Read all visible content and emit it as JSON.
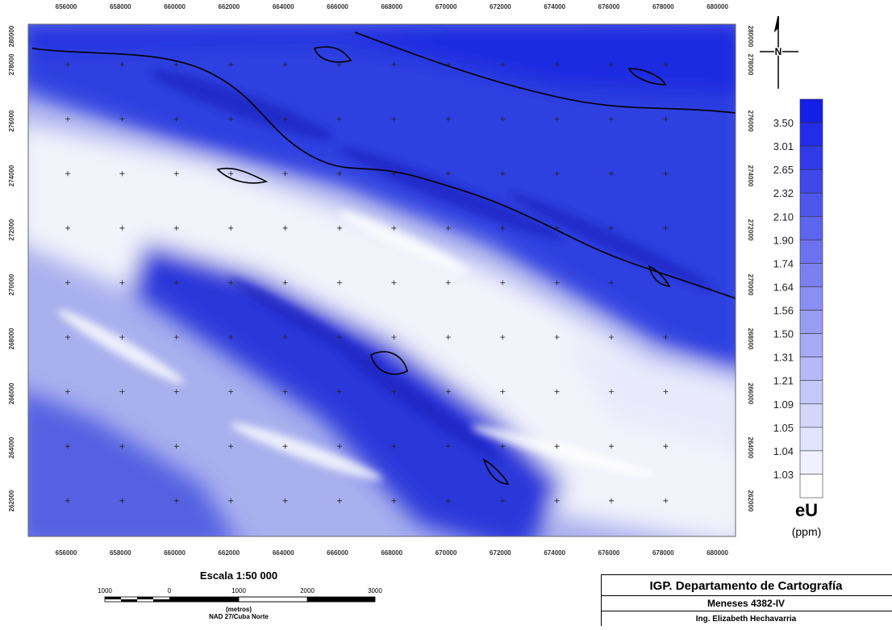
{
  "map": {
    "eastings": [
      "656000",
      "658000",
      "660000",
      "662000",
      "664000",
      "666000",
      "668000",
      "670000",
      "672000",
      "674000",
      "676000",
      "678000",
      "680000"
    ],
    "northings": [
      "280000",
      "278000",
      "276000",
      "274000",
      "272000",
      "270000",
      "268000",
      "266000",
      "264000",
      "262000"
    ],
    "north_label": "N",
    "legend": {
      "values": [
        "3.50",
        "3.01",
        "2.65",
        "2.32",
        "2.10",
        "1.90",
        "1.74",
        "1.64",
        "1.56",
        "1.50",
        "1.31",
        "1.21",
        "1.09",
        "1.05",
        "1.04",
        "1.03"
      ],
      "title": "eU",
      "unit": "(ppm)"
    },
    "scale": {
      "title": "Escala 1:50 000",
      "labels": [
        "1000",
        "0",
        "1000",
        "2000",
        "3000"
      ],
      "unit": "(metros)",
      "datum": "NAD 27/Cuba Norte"
    },
    "title_block": {
      "org": "IGP. Departamento de Cartografía",
      "sheet": "Meneses 4382-IV",
      "author": "Ing. Elizabeth Hechavarria"
    }
  }
}
